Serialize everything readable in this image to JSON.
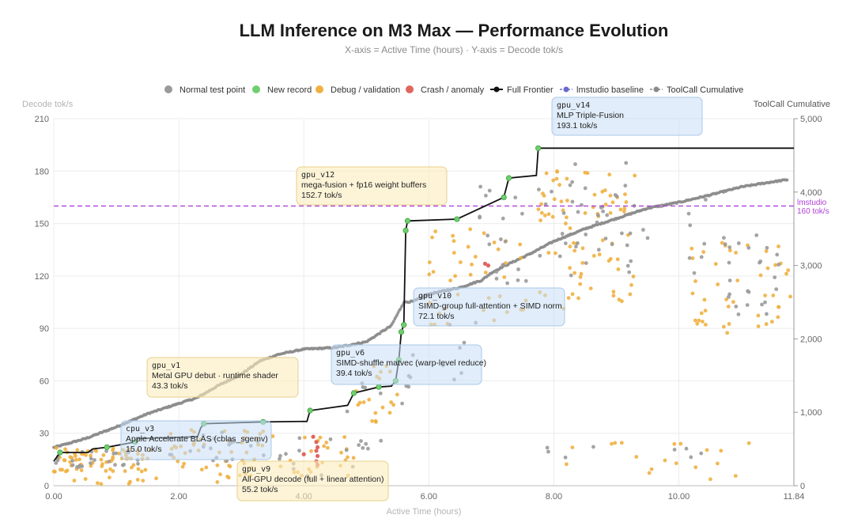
{
  "chart_data": {
    "type": "scatter",
    "title": "LLM Inference on M3 Max — Performance Evolution",
    "subtitle": "X-axis = Active Time (hours) · Y-axis = Decode tok/s",
    "xlabel": "Active Time (hours)",
    "ylabel": "Decode tok/s",
    "y2label": "ToolCall Cumulative",
    "xlim": [
      0,
      11.84
    ],
    "ylim": [
      0,
      210
    ],
    "y2lim": [
      0,
      5000
    ],
    "x_ticks": [
      "0.00",
      "2.00",
      "4.00",
      "6.00",
      "8.00",
      "10.00",
      "11.84"
    ],
    "y_ticks": [
      "0",
      "30",
      "60",
      "90",
      "120",
      "150",
      "180",
      "210"
    ],
    "y2_ticks": [
      "0",
      "1,000",
      "2,000",
      "3,000",
      "4,000",
      "5,000"
    ],
    "grid": true,
    "legend_position": "top",
    "legend": [
      {
        "label": "Normal test point",
        "kind": "dot",
        "color": "#9a9a9a"
      },
      {
        "label": "New record",
        "kind": "dot",
        "color": "#6fcf6f"
      },
      {
        "label": "Debug / validation",
        "kind": "dot",
        "color": "#f0b040"
      },
      {
        "label": "Crash / anomaly",
        "kind": "dot",
        "color": "#e0665e"
      },
      {
        "label": "Full Frontier",
        "kind": "line-dot",
        "color": "#111111"
      },
      {
        "label": "lmstudio baseline",
        "kind": "dash-dot",
        "color": "#6a6acc"
      },
      {
        "label": "ToolCall Cumulative",
        "kind": "dash-dot",
        "color": "#8a8a8a"
      }
    ],
    "baseline": {
      "value": 160,
      "label1": "lmstudio",
      "label2": "160 tok/s",
      "color": "#b040d8"
    },
    "frontier": [
      [
        0.0,
        14.0
      ],
      [
        0.1,
        19.0
      ],
      [
        0.55,
        19.0
      ],
      [
        0.62,
        21.0
      ],
      [
        0.85,
        22.0
      ],
      [
        1.3,
        25.0
      ],
      [
        1.35,
        27.0
      ],
      [
        2.3,
        28.0
      ],
      [
        2.35,
        33.0
      ],
      [
        2.4,
        35.5
      ],
      [
        3.35,
        36.5
      ],
      [
        4.05,
        36.8
      ],
      [
        4.1,
        43.0
      ],
      [
        4.7,
        46.0
      ],
      [
        4.8,
        53.0
      ],
      [
        5.2,
        56.5
      ],
      [
        5.4,
        57.0
      ],
      [
        5.47,
        60.0
      ],
      [
        5.52,
        72.0
      ],
      [
        5.56,
        88.0
      ],
      [
        5.6,
        92.0
      ],
      [
        5.63,
        146.0
      ],
      [
        5.66,
        151.5
      ],
      [
        6.45,
        152.5
      ],
      [
        7.2,
        165.0
      ],
      [
        7.28,
        176.0
      ],
      [
        7.72,
        177.5
      ],
      [
        7.75,
        193.1
      ],
      [
        11.84,
        193.1
      ]
    ],
    "records": [
      [
        0.1,
        19.0
      ],
      [
        0.85,
        22.0
      ],
      [
        1.3,
        25.0
      ],
      [
        2.4,
        35.5
      ],
      [
        3.35,
        36.5
      ],
      [
        4.1,
        43.0
      ],
      [
        4.8,
        53.0
      ],
      [
        5.2,
        56.5
      ],
      [
        5.47,
        60.0
      ],
      [
        5.52,
        72.0
      ],
      [
        5.56,
        88.0
      ],
      [
        5.6,
        92.0
      ],
      [
        5.63,
        146.0
      ],
      [
        5.66,
        151.5
      ],
      [
        6.45,
        152.5
      ],
      [
        7.2,
        165.0
      ],
      [
        7.28,
        176.0
      ],
      [
        7.75,
        193.1
      ]
    ],
    "crash": [
      [
        4.2,
        25.0
      ],
      [
        4.22,
        22.0
      ],
      [
        4.2,
        20.0
      ],
      [
        4.22,
        17.0
      ],
      [
        4.2,
        14.0
      ],
      [
        4.22,
        12.0
      ],
      [
        4.0,
        18.0
      ],
      [
        4.15,
        28.0
      ],
      [
        6.9,
        127.0
      ],
      [
        6.95,
        126.0
      ]
    ],
    "toolcall": [
      [
        0.0,
        520
      ],
      [
        0.5,
        640
      ],
      [
        1.0,
        800
      ],
      [
        1.5,
        980
      ],
      [
        2.0,
        1120
      ],
      [
        2.3,
        1200
      ],
      [
        2.6,
        1350
      ],
      [
        3.0,
        1520
      ],
      [
        3.3,
        1700
      ],
      [
        3.6,
        1790
      ],
      [
        4.0,
        1860
      ],
      [
        4.5,
        1880
      ],
      [
        5.0,
        1960
      ],
      [
        5.4,
        2180
      ],
      [
        5.6,
        2500
      ],
      [
        5.75,
        2510
      ],
      [
        6.0,
        2610
      ],
      [
        6.5,
        2700
      ],
      [
        6.85,
        2800
      ],
      [
        7.0,
        2900
      ],
      [
        7.2,
        2990
      ],
      [
        7.6,
        3150
      ],
      [
        8.0,
        3330
      ],
      [
        8.5,
        3500
      ],
      [
        9.0,
        3640
      ],
      [
        9.5,
        3780
      ],
      [
        10.0,
        3860
      ],
      [
        10.5,
        3960
      ],
      [
        11.0,
        4070
      ],
      [
        11.5,
        4140
      ],
      [
        11.75,
        4170
      ]
    ],
    "annotations": [
      {
        "id": "gpu_v14",
        "name": "gpu_v14",
        "desc": "MLP Triple-Fusion",
        "value": "193.1 tok/s",
        "style": "blue"
      },
      {
        "id": "gpu_v12",
        "name": "gpu_v12",
        "desc": "mega-fusion + fp16 weight buffers",
        "value": "152.7 tok/s",
        "style": "yellow"
      },
      {
        "id": "gpu_v10",
        "name": "gpu_v10",
        "desc": "SIMD-group full-attention + SIMD norm",
        "value": "72.1 tok/s",
        "style": "blue"
      },
      {
        "id": "gpu_v6",
        "name": "gpu_v6",
        "desc": "SIMD-shuffle matvec (warp-level reduce)",
        "value": "39.4 tok/s",
        "style": "blue"
      },
      {
        "id": "gpu_v1",
        "name": "gpu_v1",
        "desc": "Metal GPU debut · runtime shader",
        "value": "43.3 tok/s",
        "style": "yellow"
      },
      {
        "id": "cpu_v3",
        "name": "cpu_v3",
        "desc": "Apple Accelerate BLAS (cblas_sgemv)",
        "value": "15.0 tok/s",
        "style": "blue"
      },
      {
        "id": "gpu_v9",
        "name": "gpu_v9",
        "desc": "All-GPU decode (full + linear attention)",
        "value": "55.2 tok/s",
        "style": "yellow"
      }
    ]
  }
}
